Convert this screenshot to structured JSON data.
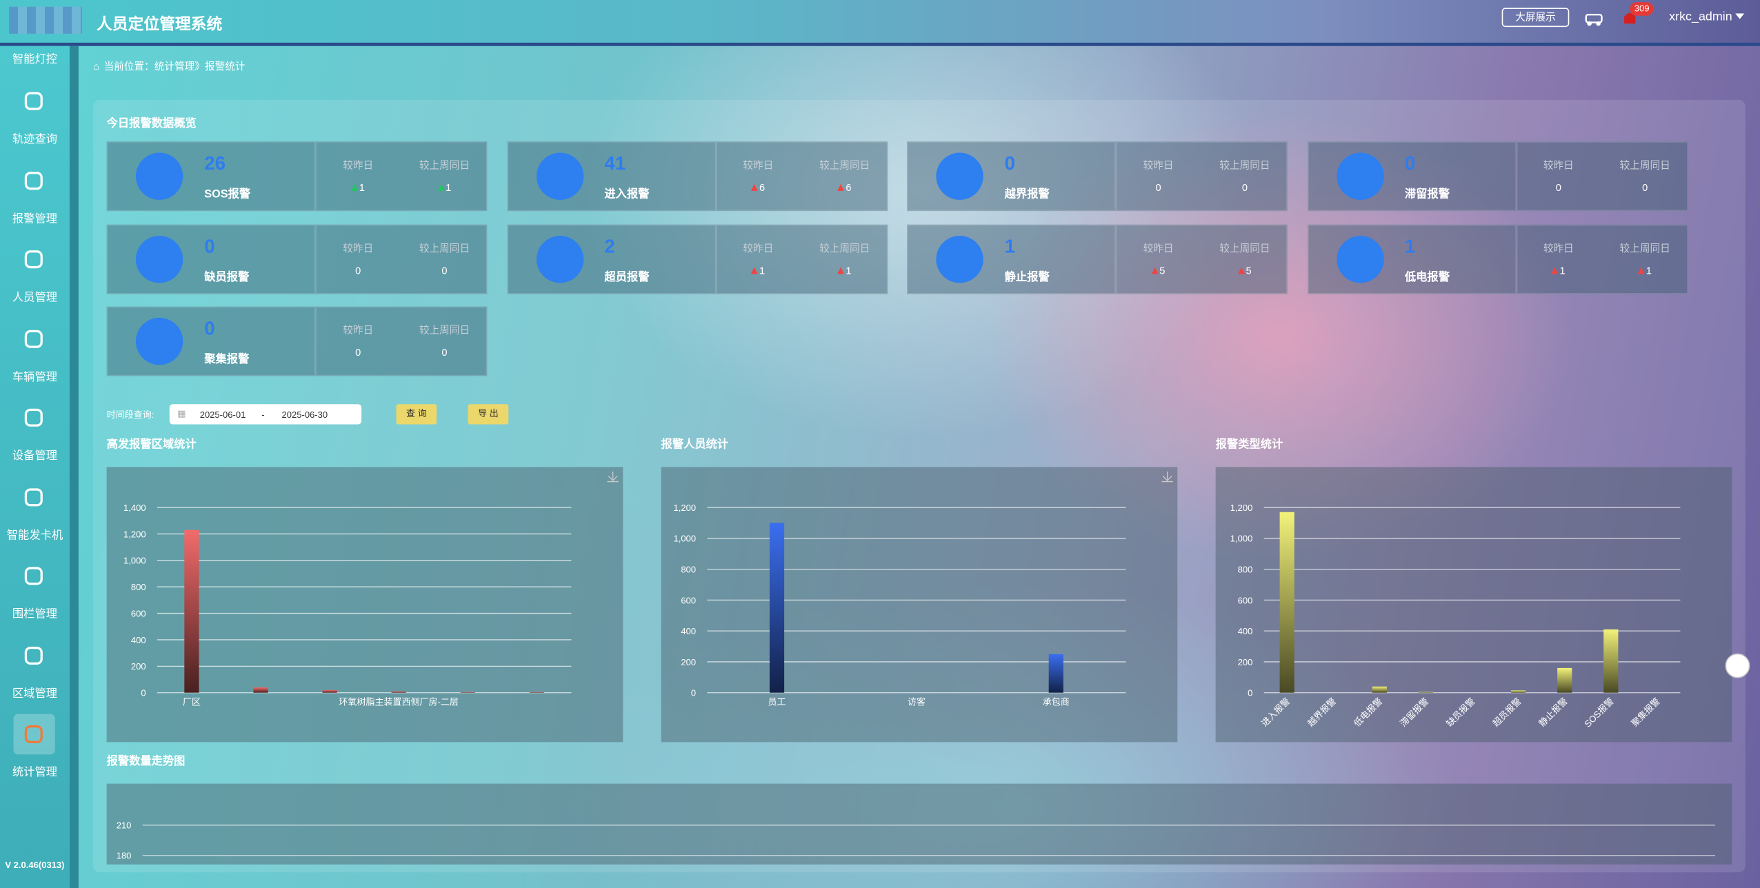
{
  "header": {
    "title": "人员定位管理系统",
    "big_screen": "大屏展示",
    "notice_count": 309,
    "user": "xrkc_admin"
  },
  "sidebar": {
    "items": [
      "智能灯控",
      "轨迹查询",
      "报警管理",
      "人员管理",
      "车辆管理",
      "设备管理",
      "智能发卡机",
      "围栏管理",
      "区域管理",
      "统计管理"
    ],
    "active": 9,
    "version": "V 2.0.46(0313)"
  },
  "breadcrumb": {
    "prefix": "当前位置：",
    "path": "统计管理》报警统计"
  },
  "overview": {
    "title": "今日报警数据概览",
    "compare_labels": [
      "较昨日",
      "较上周同日"
    ],
    "cards": [
      {
        "name": "SOS报警",
        "count": 26,
        "vs_yesterday": 1,
        "vs_last_week": 1,
        "trend_color": "#22c55e"
      },
      {
        "name": "进入报警",
        "count": 41,
        "vs_yesterday": 6,
        "vs_last_week": 6,
        "trend_color": "#ef4444"
      },
      {
        "name": "越界报警",
        "count": 0,
        "vs_yesterday": 0,
        "vs_last_week": 0
      },
      {
        "name": "滞留报警",
        "count": 0,
        "vs_yesterday": 0,
        "vs_last_week": 0
      },
      {
        "name": "缺员报警",
        "count": 0,
        "vs_yesterday": 0,
        "vs_last_week": 0
      },
      {
        "name": "超员报警",
        "count": 2,
        "vs_yesterday": 1,
        "vs_last_week": 1,
        "trend_color": "#ef4444"
      },
      {
        "name": "静止报警",
        "count": 1,
        "vs_yesterday": 5,
        "vs_last_week": 5,
        "trend_color": "#ef4444"
      },
      {
        "name": "低电报警",
        "count": 1,
        "vs_yesterday": 1,
        "vs_last_week": 1,
        "trend_color": "#ef4444"
      },
      {
        "name": "聚集报警",
        "count": 0,
        "vs_yesterday": 0,
        "vs_last_week": 0
      }
    ]
  },
  "query": {
    "label": "时间段查询:",
    "start": "2025-06-01",
    "separator": "-",
    "end": "2025-06-30",
    "search": "查 询",
    "export": "导 出"
  },
  "chart_data": [
    {
      "type": "bar",
      "title": "高发报警区域统计",
      "color": "#f26b6b",
      "categories": [
        "厂区",
        null,
        null,
        "环氧树脂主装置西侧厂房-二层",
        null,
        null
      ],
      "values": [
        1230,
        40,
        20,
        10,
        5,
        5
      ],
      "ylim": [
        0,
        1400
      ],
      "yticks": [
        0,
        200,
        400,
        600,
        800,
        {
          "value": 1000,
          "label": "1,000"
        },
        {
          "value": 1200,
          "label": "1,200"
        },
        {
          "value": 1400,
          "label": "1,400"
        }
      ],
      "grid": true
    },
    {
      "type": "bar",
      "title": "报警人员统计",
      "color": "#3b6ff0",
      "categories": [
        "员工",
        "访客",
        "承包商"
      ],
      "values": [
        1100,
        0,
        250
      ],
      "ylim": [
        0,
        1200
      ],
      "yticks": [
        0,
        200,
        400,
        600,
        800,
        {
          "value": 1000,
          "label": "1,000"
        },
        {
          "value": 1200,
          "label": "1,200"
        }
      ],
      "grid": true
    },
    {
      "type": "bar",
      "title": "报警类型统计",
      "color": "#f2f27a",
      "rotate_labels": true,
      "categories": [
        "进入报警",
        "越界报警",
        "低电报警",
        "滞留报警",
        "缺员报警",
        "超员报警",
        "静止报警",
        "SOS报警",
        "聚集报警"
      ],
      "values": [
        1170,
        0,
        40,
        5,
        0,
        15,
        160,
        410,
        0
      ],
      "ylim": [
        0,
        1200
      ],
      "yticks": [
        0,
        200,
        400,
        600,
        800,
        {
          "value": 1000,
          "label": "1,000"
        },
        {
          "value": 1200,
          "label": "1,200"
        }
      ],
      "grid": true
    },
    {
      "type": "line",
      "title": "报警数量走势图",
      "ylim": [
        180,
        210
      ],
      "yticks": [
        180,
        210
      ],
      "grid": true
    }
  ]
}
